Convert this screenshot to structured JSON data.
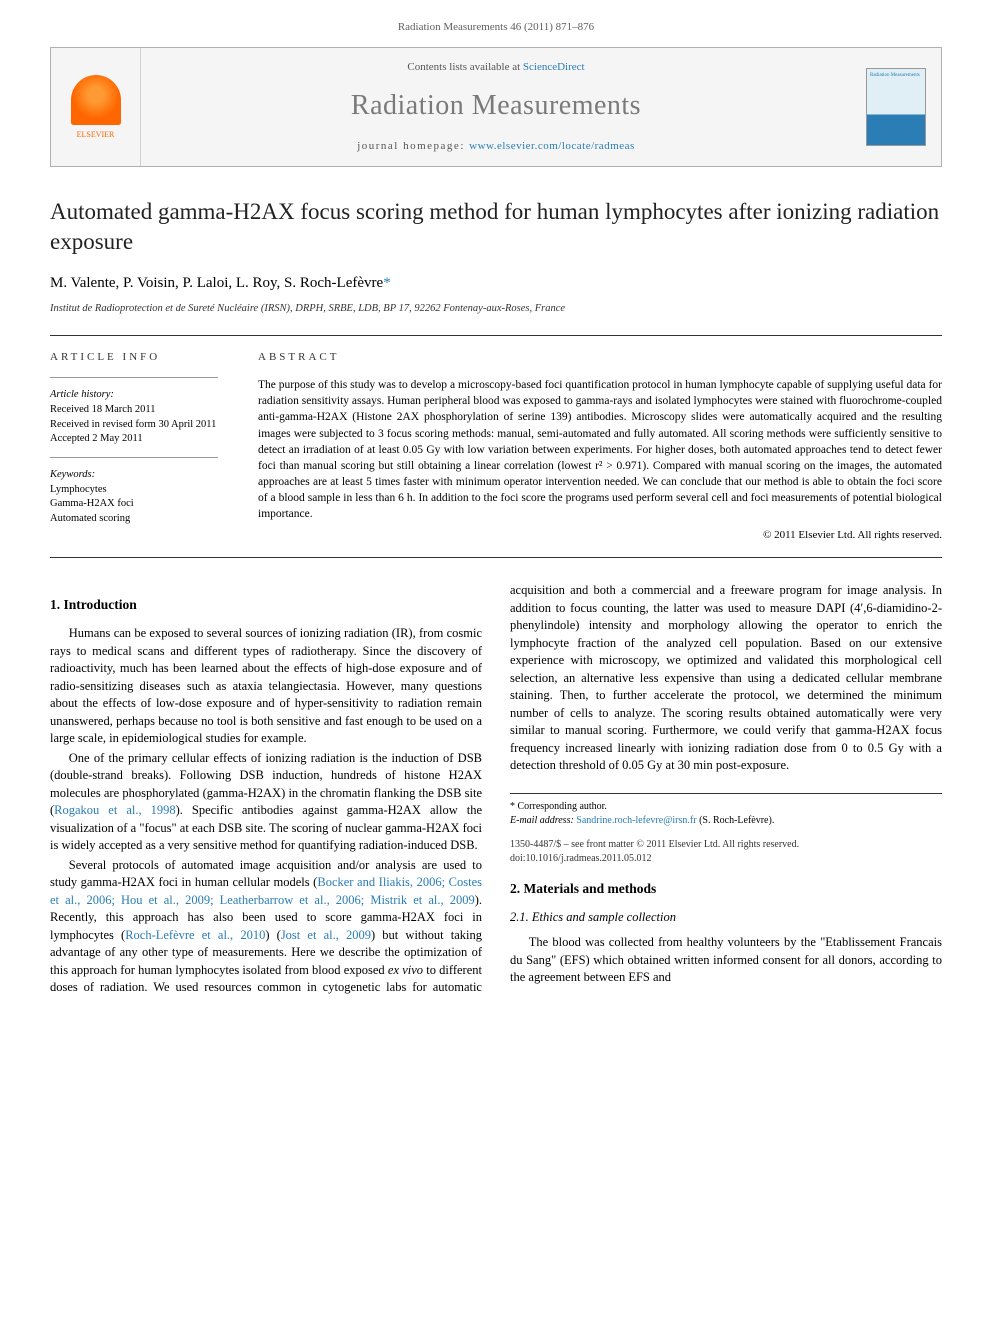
{
  "journal_ref": "Radiation Measurements 46 (2011) 871–876",
  "header": {
    "contents_prefix": "Contents lists available at ",
    "contents_link": "ScienceDirect",
    "journal_title": "Radiation Measurements",
    "homepage_prefix": "journal homepage: ",
    "homepage_url": "www.elsevier.com/locate/radmeas",
    "publisher_label": "ELSEVIER",
    "cover_label": "Radiation Measurements"
  },
  "article": {
    "title": "Automated gamma-H2AX focus scoring method for human lymphocytes after ionizing radiation exposure",
    "authors_text": "M. Valente, P. Voisin, P. Laloi, L. Roy, S. Roch-Lefèvre",
    "corr_marker": "*",
    "affiliation": "Institut de Radioprotection et de Sureté Nucléaire (IRSN), DRPH, SRBE, LDB, BP 17, 92262 Fontenay-aux-Roses, France"
  },
  "info": {
    "heading": "ARTICLE INFO",
    "history_label": "Article history:",
    "received": "Received 18 March 2011",
    "revised": "Received in revised form 30 April 2011",
    "accepted": "Accepted 2 May 2011",
    "keywords_label": "Keywords:",
    "keywords": [
      "Lymphocytes",
      "Gamma-H2AX foci",
      "Automated scoring"
    ]
  },
  "abstract": {
    "heading": "ABSTRACT",
    "text": "The purpose of this study was to develop a microscopy-based foci quantification protocol in human lymphocyte capable of supplying useful data for radiation sensitivity assays. Human peripheral blood was exposed to gamma-rays and isolated lymphocytes were stained with fluorochrome-coupled anti-gamma-H2AX (Histone 2AX phosphorylation of serine 139) antibodies. Microscopy slides were automatically acquired and the resulting images were subjected to 3 focus scoring methods: manual, semi-automated and fully automated. All scoring methods were sufficiently sensitive to detect an irradiation of at least 0.05 Gy with low variation between experiments. For higher doses, both automated approaches tend to detect fewer foci than manual scoring but still obtaining a linear correlation (lowest r² > 0.971). Compared with manual scoring on the images, the automated approaches are at least 5 times faster with minimum operator intervention needed. We can conclude that our method is able to obtain the foci score of a blood sample in less than 6 h. In addition to the foci score the programs used perform several cell and foci measurements of potential biological importance.",
    "copyright": "© 2011 Elsevier Ltd. All rights reserved."
  },
  "sections": {
    "intro_heading": "1. Introduction",
    "intro_p1": "Humans can be exposed to several sources of ionizing radiation (IR), from cosmic rays to medical scans and different types of radiotherapy. Since the discovery of radioactivity, much has been learned about the effects of high-dose exposure and of radio-sensitizing diseases such as ataxia telangiectasia. However, many questions about the effects of low-dose exposure and of hyper-sensitivity to radiation remain unanswered, perhaps because no tool is both sensitive and fast enough to be used on a large scale, in epidemiological studies for example.",
    "intro_p2_a": "One of the primary cellular effects of ionizing radiation is the induction of DSB (double-strand breaks). Following DSB induction, hundreds of histone H2AX molecules are phosphorylated (gamma-H2AX) in the chromatin flanking the DSB site (",
    "intro_p2_ref": "Rogakou et al., 1998",
    "intro_p2_b": "). Specific antibodies against gamma-H2AX allow the visualization of a \"focus\" at each DSB site. The scoring of nuclear gamma-H2AX foci is widely accepted as a very sensitive method for quantifying radiation-induced DSB.",
    "intro_p3_a": "Several protocols of automated image acquisition and/or analysis are used to study gamma-H2AX foci in human cellular models (",
    "intro_p3_ref": "Bocker and Iliakis, 2006; Costes et al., 2006; Hou et al., 2009; Leatherbarrow et al., 2006; Mistrik et al., 2009",
    "intro_p3_b": "). Recently, this approach has also been used to score gamma-H2AX foci in ",
    "intro_p3_c": "lymphocytes (",
    "intro_p3_ref2": "Roch-Lefèvre et al., 2010",
    "intro_p3_d": ") (",
    "intro_p3_ref3": "Jost et al., 2009",
    "intro_p3_e": ") but without taking advantage of any other type of measurements. Here we describe the optimization of this approach for human lymphocytes isolated from blood exposed ",
    "intro_p3_f": "ex vivo",
    "intro_p3_g": " to different doses of radiation. We used resources common in cytogenetic labs for automatic acquisition and both a commercial and a freeware program for image analysis. In addition to focus counting, the latter was used to measure DAPI (4′,6-diamidino-2-phenylindole) intensity and morphology allowing the operator to enrich the lymphocyte fraction of the analyzed cell population. Based on our extensive experience with microscopy, we optimized and validated this morphological cell selection, an alternative less expensive than using a dedicated cellular membrane staining. Then, to further accelerate the protocol, we determined the minimum number of cells to analyze. The scoring results obtained automatically were very similar to manual scoring. Furthermore, we could verify that gamma-H2AX focus frequency increased linearly with ionizing radiation dose from 0 to 0.5 Gy with a detection threshold of 0.05 Gy at 30 min post-exposure.",
    "mm_heading": "2. Materials and methods",
    "mm_sub1": "2.1. Ethics and sample collection",
    "mm_p1": "The blood was collected from healthy volunteers by the \"Etablissement Francais du Sang\" (EFS) which obtained written informed consent for all donors, according to the agreement between EFS and"
  },
  "footnote": {
    "corr_label": "* Corresponding author.",
    "email_label": "E-mail address:",
    "email": "Sandrine.roch-lefevre@irsn.fr",
    "email_name": "(S. Roch-Lefèvre)."
  },
  "footer": {
    "issn_line": "1350-4487/$ – see front matter © 2011 Elsevier Ltd. All rights reserved.",
    "doi_line": "doi:10.1016/j.radmeas.2011.05.012"
  },
  "colors": {
    "link": "#2a7db5",
    "elsevier_orange": "#ff6600",
    "border_gray": "#b0b0b0",
    "header_bg": "#f5f5f5"
  }
}
